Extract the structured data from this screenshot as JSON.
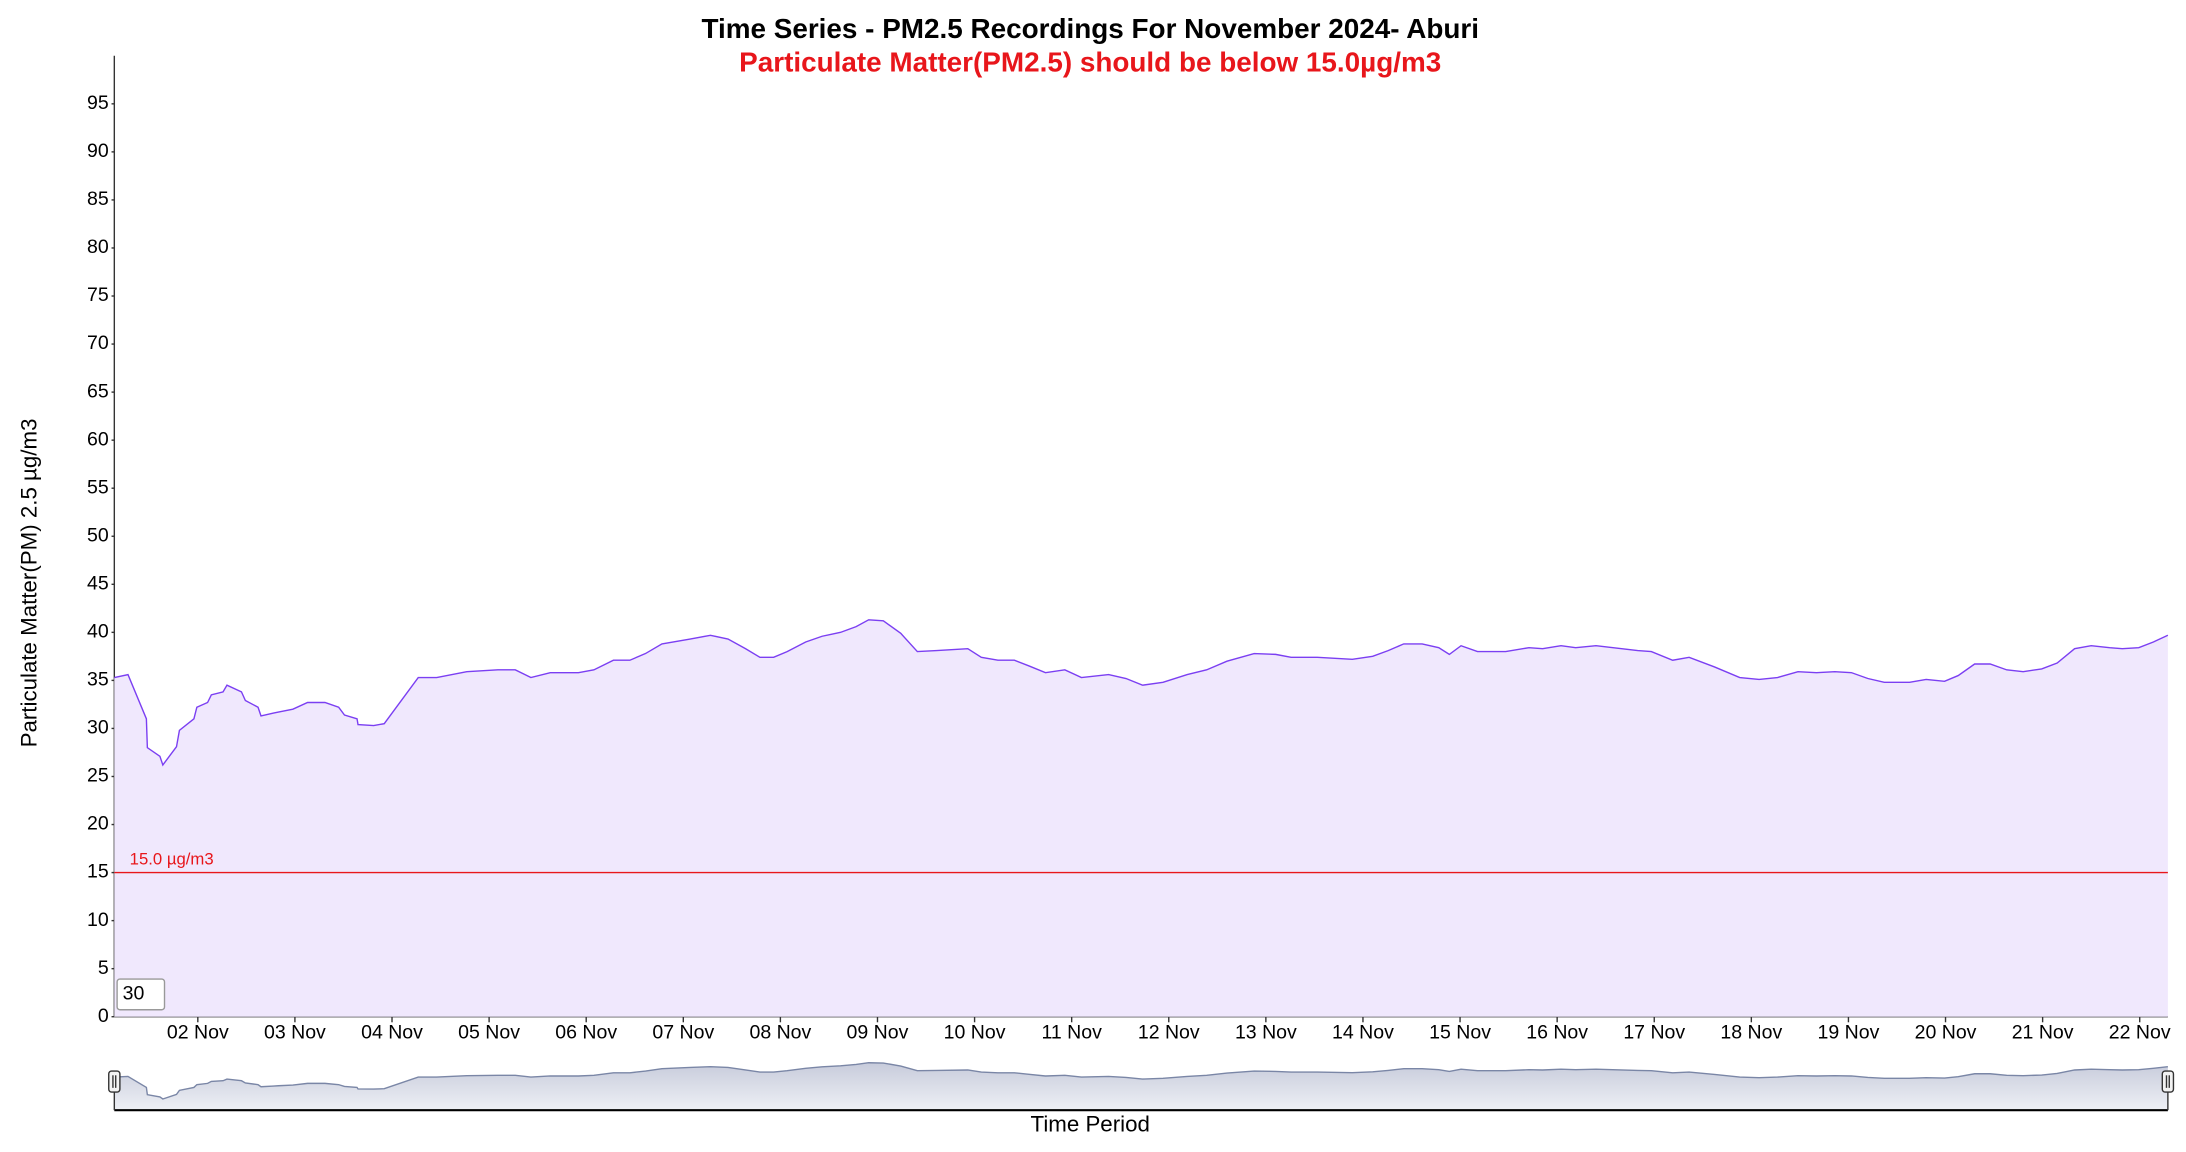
{
  "chart_data": {
    "type": "area",
    "title": "Time Series - PM2.5 Recordings For November 2024- Aburi",
    "subtitle": "Particulate Matter(PM2.5) should be below 15.0µg/m3",
    "y_label": "Particulate Matter(PM) 2.5 µg/m3",
    "x_label": "Time Period",
    "zoom_input": "30",
    "color": "#7b3ff2",
    "fill": "#f0e8fd",
    "threshold": {
      "value": 15,
      "label": "15.0 µg/m3",
      "color": "#e8161b"
    },
    "x": [
      1.14,
      1.28,
      1.47,
      1.48,
      1.61,
      1.64,
      1.78,
      1.81,
      1.96,
      1.99,
      2.1,
      2.14,
      2.26,
      2.3,
      2.45,
      2.49,
      2.62,
      2.65,
      2.78,
      2.83,
      2.98,
      3.13,
      3.31,
      3.45,
      3.51,
      3.64,
      3.65,
      3.81,
      3.92,
      4.27,
      4.46,
      4.77,
      5.09,
      5.27,
      5.43,
      5.63,
      5.92,
      6.08,
      6.28,
      6.45,
      6.61,
      6.78,
      7.07,
      7.28,
      7.46,
      7.64,
      7.79,
      7.93,
      8.07,
      8.26,
      8.43,
      8.62,
      8.78,
      8.91,
      9.06,
      9.24,
      9.41,
      9.61,
      9.93,
      10.07,
      10.24,
      10.41,
      10.56,
      10.73,
      10.93,
      11.1,
      11.38,
      11.56,
      11.73,
      11.94,
      12.19,
      12.39,
      12.6,
      12.88,
      13.1,
      13.26,
      13.53,
      13.89,
      14.1,
      14.26,
      14.42,
      14.61,
      14.78,
      14.89,
      15.01,
      15.18,
      15.47,
      15.71,
      15.85,
      16.04,
      16.19,
      16.4,
      16.83,
      16.97,
      17.19,
      17.36,
      17.62,
      17.88,
      18.08,
      18.27,
      18.48,
      18.67,
      18.86,
      19.03,
      19.2,
      19.37,
      19.63,
      19.8,
      19.99,
      20.13,
      20.3,
      20.46,
      20.63,
      20.8,
      20.99,
      21.15,
      21.33,
      21.5,
      21.69,
      21.82,
      21.99,
      22.14,
      22.29
    ],
    "values": [
      35.3,
      35.6,
      31.0,
      28.0,
      27.1,
      26.2,
      28.1,
      29.8,
      31.0,
      32.2,
      32.7,
      33.5,
      33.8,
      34.5,
      33.8,
      32.9,
      32.2,
      31.3,
      31.6,
      31.7,
      32.0,
      32.7,
      32.7,
      32.2,
      31.4,
      31.0,
      30.4,
      30.3,
      30.5,
      35.3,
      35.3,
      35.9,
      36.1,
      36.1,
      35.3,
      35.8,
      35.8,
      36.1,
      37.1,
      37.1,
      37.8,
      38.8,
      39.3,
      39.7,
      39.3,
      38.3,
      37.4,
      37.4,
      38.0,
      39.0,
      39.6,
      40.0,
      40.6,
      41.3,
      41.2,
      39.9,
      38.0,
      38.1,
      38.3,
      37.4,
      37.1,
      37.1,
      36.5,
      35.8,
      36.1,
      35.3,
      35.6,
      35.2,
      34.5,
      34.8,
      35.6,
      36.1,
      37.0,
      37.8,
      37.7,
      37.4,
      37.4,
      37.2,
      37.5,
      38.1,
      38.8,
      38.8,
      38.4,
      37.7,
      38.6,
      38.0,
      38.0,
      38.4,
      38.3,
      38.6,
      38.4,
      38.6,
      38.1,
      38.0,
      37.1,
      37.4,
      36.4,
      35.3,
      35.1,
      35.3,
      35.9,
      35.8,
      35.9,
      35.8,
      35.2,
      34.8,
      34.8,
      35.1,
      34.9,
      35.5,
      36.7,
      36.7,
      36.1,
      35.9,
      36.2,
      36.8,
      38.3,
      38.6,
      38.4,
      38.3,
      38.4,
      39.0,
      39.7
    ],
    "xlim": [
      1.14,
      22.29
    ],
    "xticks": [
      {
        "value": 2,
        "label": "02 Nov"
      },
      {
        "value": 3,
        "label": "03 Nov"
      },
      {
        "value": 4,
        "label": "04 Nov"
      },
      {
        "value": 5,
        "label": "05 Nov"
      },
      {
        "value": 6,
        "label": "06 Nov"
      },
      {
        "value": 7,
        "label": "07 Nov"
      },
      {
        "value": 8,
        "label": "08 Nov"
      },
      {
        "value": 9,
        "label": "09 Nov"
      },
      {
        "value": 10,
        "label": "10 Nov"
      },
      {
        "value": 11,
        "label": "11 Nov"
      },
      {
        "value": 12,
        "label": "12 Nov"
      },
      {
        "value": 13,
        "label": "13 Nov"
      },
      {
        "value": 14,
        "label": "14 Nov"
      },
      {
        "value": 15,
        "label": "15 Nov"
      },
      {
        "value": 16,
        "label": "16 Nov"
      },
      {
        "value": 17,
        "label": "17 Nov"
      },
      {
        "value": 18,
        "label": "18 Nov"
      },
      {
        "value": 19,
        "label": "19 Nov"
      },
      {
        "value": 20,
        "label": "20 Nov"
      },
      {
        "value": 21,
        "label": "21 Nov"
      },
      {
        "value": 22,
        "label": "22 Nov"
      }
    ],
    "ylim": [
      0,
      100
    ],
    "yticks": [
      0,
      5,
      10,
      15,
      20,
      25,
      30,
      35,
      40,
      45,
      50,
      55,
      60,
      65,
      70,
      75,
      80,
      85,
      90,
      95
    ],
    "grid": false
  }
}
